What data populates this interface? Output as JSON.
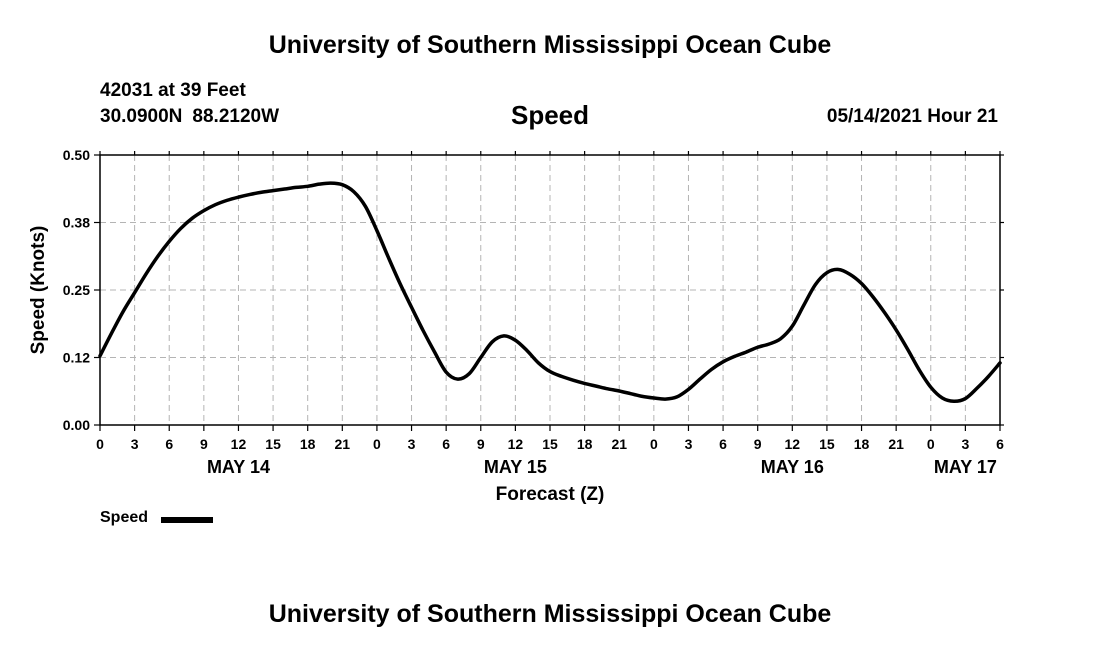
{
  "header": {
    "title": "University of Southern Mississippi Ocean Cube",
    "station": "42031 at 39 Feet",
    "latitude": "30.0900N",
    "longitude": "88.2120W",
    "subtitle": "Speed",
    "timestamp": "05/14/2021 Hour 21"
  },
  "footer": {
    "title": "University of Southern Mississippi Ocean Cube"
  },
  "legend": {
    "label": "Speed"
  },
  "chart_data": {
    "type": "line",
    "title": "Speed",
    "xlabel": "Forecast (Z)",
    "ylabel": "Speed (Knots)",
    "ylim": [
      0,
      0.5
    ],
    "xlim": [
      0,
      78
    ],
    "grid": true,
    "line_color": "#000000",
    "y_ticks": [
      0.0,
      0.125,
      0.25,
      0.375,
      0.5
    ],
    "y_tick_labels": [
      "0.00",
      "0.12",
      "0.25",
      "0.38",
      "0.50"
    ],
    "x_ticks": [
      0,
      3,
      6,
      9,
      12,
      15,
      18,
      21,
      24,
      27,
      30,
      33,
      36,
      39,
      42,
      45,
      48,
      51,
      54,
      57,
      60,
      63,
      66,
      69,
      72,
      75,
      78
    ],
    "x_tick_labels": [
      "0",
      "3",
      "6",
      "9",
      "12",
      "15",
      "18",
      "21",
      "0",
      "3",
      "6",
      "9",
      "12",
      "15",
      "18",
      "21",
      "0",
      "3",
      "6",
      "9",
      "12",
      "15",
      "18",
      "21",
      "0",
      "3",
      "6"
    ],
    "date_labels": [
      {
        "hour": 12,
        "label": "MAY 14"
      },
      {
        "hour": 36,
        "label": "MAY 15"
      },
      {
        "hour": 60,
        "label": "MAY 16"
      },
      {
        "hour": 75,
        "label": "MAY 17"
      }
    ],
    "series": [
      {
        "name": "Speed",
        "x": [
          0,
          1,
          2,
          3,
          4,
          5,
          6,
          7,
          8,
          9,
          10,
          11,
          12,
          13,
          14,
          15,
          16,
          17,
          18,
          19,
          20,
          21,
          22,
          23,
          24,
          25,
          26,
          27,
          28,
          29,
          30,
          31,
          32,
          33,
          34,
          35,
          36,
          37,
          38,
          39,
          40,
          41,
          42,
          43,
          44,
          45,
          46,
          47,
          48,
          49,
          50,
          51,
          52,
          53,
          54,
          55,
          56,
          57,
          58,
          59,
          60,
          61,
          62,
          63,
          64,
          65,
          66,
          67,
          68,
          69,
          70,
          71,
          72,
          73,
          74,
          75,
          76,
          77,
          78
        ],
        "values": [
          0.128,
          0.17,
          0.21,
          0.245,
          0.28,
          0.312,
          0.34,
          0.364,
          0.383,
          0.397,
          0.408,
          0.416,
          0.422,
          0.427,
          0.431,
          0.434,
          0.437,
          0.44,
          0.442,
          0.446,
          0.448,
          0.445,
          0.432,
          0.405,
          0.36,
          0.31,
          0.262,
          0.218,
          0.175,
          0.135,
          0.098,
          0.085,
          0.095,
          0.125,
          0.154,
          0.165,
          0.157,
          0.138,
          0.115,
          0.099,
          0.09,
          0.083,
          0.077,
          0.072,
          0.067,
          0.063,
          0.058,
          0.053,
          0.05,
          0.048,
          0.052,
          0.066,
          0.085,
          0.103,
          0.117,
          0.127,
          0.135,
          0.144,
          0.15,
          0.16,
          0.183,
          0.222,
          0.26,
          0.282,
          0.288,
          0.279,
          0.262,
          0.237,
          0.208,
          0.176,
          0.14,
          0.102,
          0.07,
          0.05,
          0.044,
          0.049,
          0.068,
          0.09,
          0.115
        ]
      }
    ]
  }
}
